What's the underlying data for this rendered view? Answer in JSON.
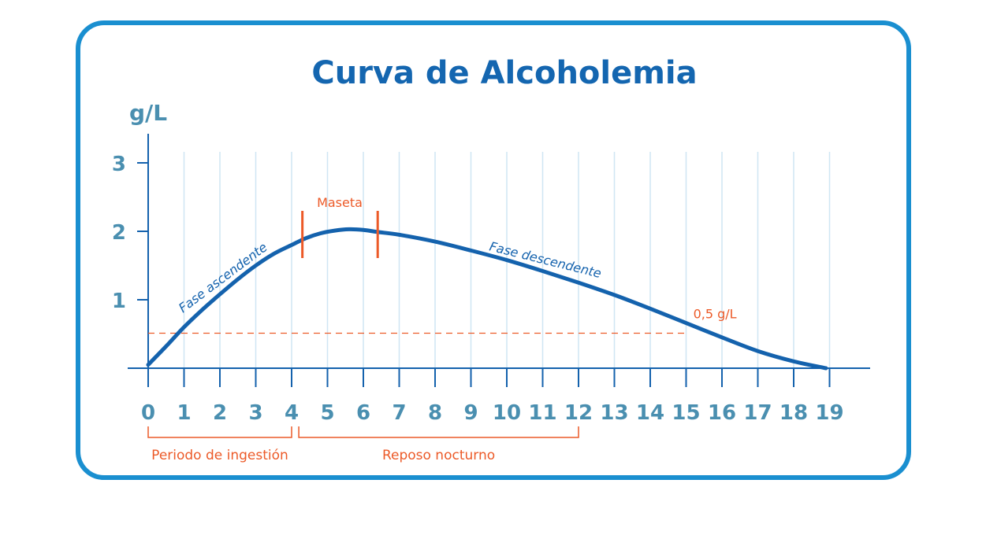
{
  "colors": {
    "frame": "#1a8fd0",
    "title": "#1466b0",
    "curve": "#1462ad",
    "axis_text": "#4a8fb0",
    "grid": "#cfe6f3",
    "accent": "#ec5a28"
  },
  "chart_data": {
    "type": "line",
    "title": "Curva de Alcoholemia",
    "ylabel": "g/L",
    "xlabel": "",
    "x_ticks": [
      "0",
      "1",
      "2",
      "3",
      "4",
      "5",
      "6",
      "7",
      "8",
      "9",
      "10",
      "11",
      "12",
      "13",
      "14",
      "15",
      "16",
      "17",
      "18",
      "19"
    ],
    "y_ticks": [
      "1",
      "2",
      "3"
    ],
    "xlim": [
      0,
      20
    ],
    "ylim": [
      0,
      3.3
    ],
    "grid": "vertical",
    "series": [
      {
        "x": [
          0,
          0.5,
          1,
          1.5,
          2,
          2.5,
          3,
          3.5,
          4,
          4.4,
          4.8,
          5.2,
          5.6,
          6.0,
          6.4,
          7,
          8,
          9,
          10,
          11,
          12,
          13,
          14,
          15,
          16,
          17,
          18,
          18.9
        ],
        "y": [
          0.05,
          0.32,
          0.6,
          0.85,
          1.08,
          1.3,
          1.5,
          1.67,
          1.8,
          1.9,
          1.97,
          2.01,
          2.03,
          2.02,
          1.99,
          1.95,
          1.85,
          1.72,
          1.58,
          1.42,
          1.25,
          1.07,
          0.87,
          0.66,
          0.45,
          0.25,
          0.1,
          0.0
        ]
      }
    ],
    "threshold": {
      "value": 0.5,
      "label": "0,5 g/L"
    },
    "annotations": {
      "rising": "Fase ascendente",
      "falling": "Fase descendente",
      "plateau": "Maseta",
      "plateau_range": [
        4.3,
        6.4
      ]
    },
    "periods": [
      {
        "label": "Periodo de ingestión",
        "from": 0,
        "to": 4
      },
      {
        "label": "Reposo nocturno",
        "from": 4.2,
        "to": 12
      }
    ]
  }
}
